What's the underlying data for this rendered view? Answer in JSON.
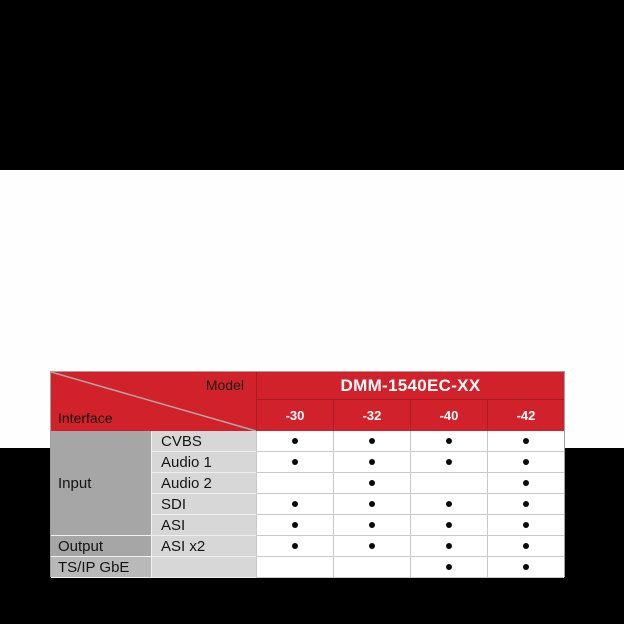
{
  "page": {
    "background_color": "#000000",
    "band_color": "#fefefe"
  },
  "table": {
    "corner": {
      "top_label": "Model",
      "bottom_label": "Interface"
    },
    "model_group_header": "DMM-1540EC-XX",
    "model_columns": [
      "-30",
      "-32",
      "-40",
      "-42"
    ],
    "groups": [
      {
        "label": "Input",
        "row_start": 1,
        "row_span": 5,
        "shade": "dark"
      },
      {
        "label": "Output",
        "row_start": 6,
        "row_span": 1,
        "shade": "dark"
      },
      {
        "label": "TS/IP GbE",
        "row_start": 7,
        "row_span": 1,
        "shade": "light"
      }
    ],
    "rows": [
      {
        "label": "CVBS",
        "dots": [
          true,
          true,
          true,
          true
        ]
      },
      {
        "label": "Audio 1",
        "dots": [
          true,
          true,
          true,
          true
        ]
      },
      {
        "label": "Audio 2",
        "dots": [
          false,
          true,
          false,
          true
        ]
      },
      {
        "label": "SDI",
        "dots": [
          true,
          true,
          true,
          true
        ]
      },
      {
        "label": "ASI",
        "dots": [
          true,
          true,
          true,
          true
        ]
      },
      {
        "label": "ASI x2",
        "dots": [
          true,
          true,
          true,
          true
        ]
      },
      {
        "label": "",
        "dots": [
          false,
          false,
          true,
          true
        ]
      }
    ],
    "colors": {
      "header_red": "#d1222b",
      "header_separator": "#a91b22",
      "group_gray_dark": "#a6a6a6",
      "group_gray_light": "#b9b9b9",
      "label_gray": "#d7d7d7",
      "grid_line": "#c9c9c9",
      "dot": "#0a0a0a"
    }
  }
}
